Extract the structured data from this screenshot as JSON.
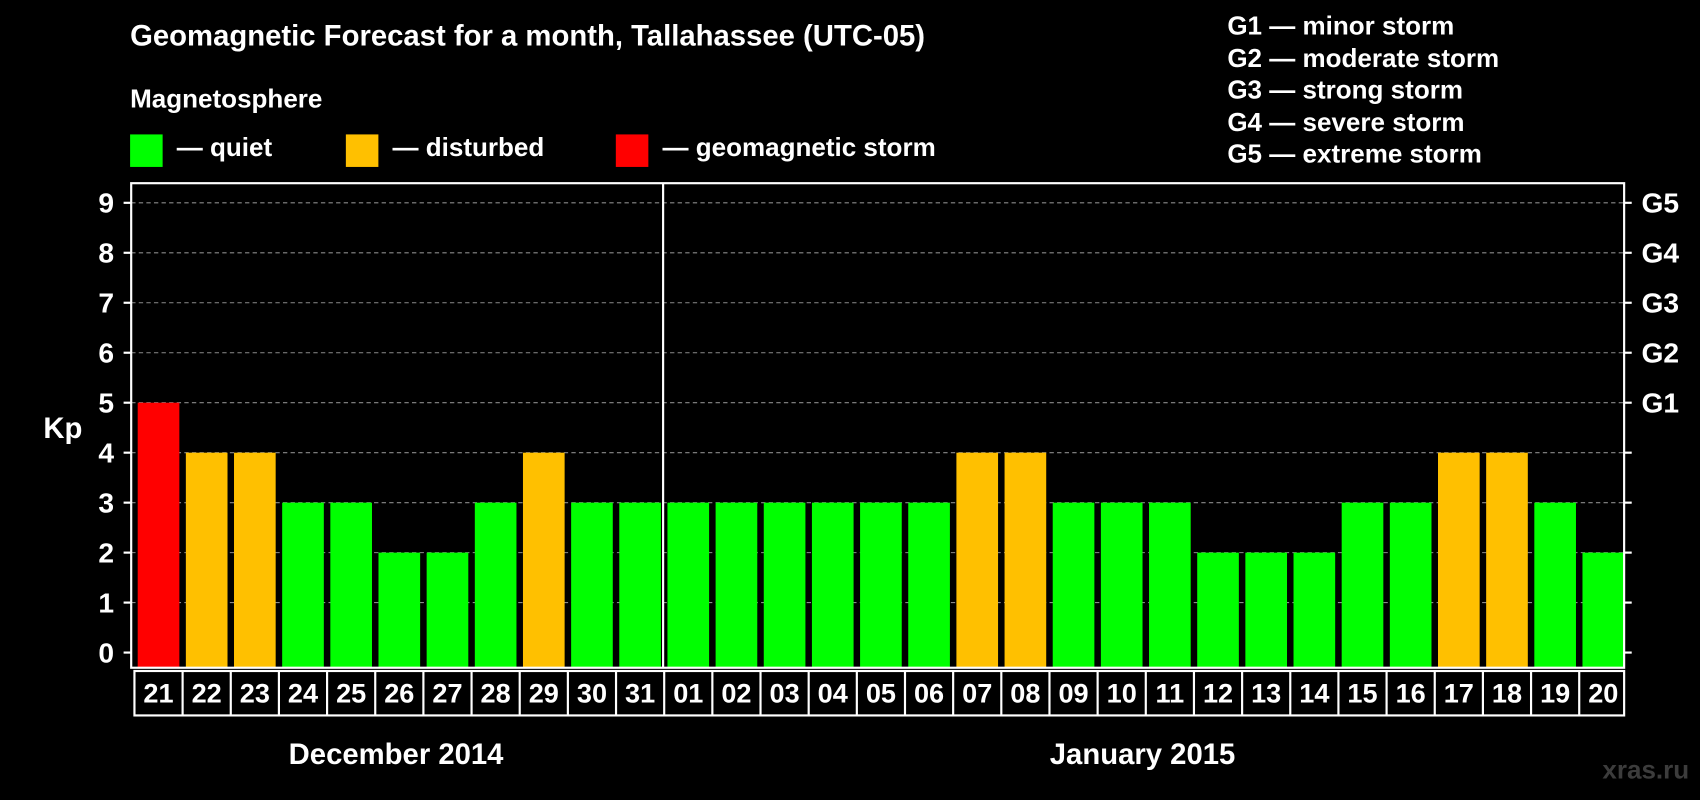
{
  "title": "Geomagnetic Forecast for a month, Tallahassee (UTC-05)",
  "legend": {
    "heading": "Magnetosphere",
    "items": [
      {
        "label": "— quiet",
        "color": "#00ff00"
      },
      {
        "label": "— disturbed",
        "color": "#ffc000"
      },
      {
        "label": "— geomagnetic storm",
        "color": "#ff0000"
      }
    ]
  },
  "storm_scale": [
    "G1 — minor storm",
    "G2 — moderate storm",
    "G3 — strong storm",
    "G4 — severe storm",
    "G5 — extreme storm"
  ],
  "watermark": "xras.ru",
  "chart_data": {
    "type": "bar",
    "title": "Geomagnetic Forecast for a month, Tallahassee (UTC-05)",
    "ylabel": "Kp",
    "ylim": [
      0,
      9
    ],
    "yticks": [
      0,
      1,
      2,
      3,
      4,
      5,
      6,
      7,
      8,
      9
    ],
    "grid": true,
    "right_axis": [
      {
        "kp": 5,
        "label": "G1"
      },
      {
        "kp": 6,
        "label": "G2"
      },
      {
        "kp": 7,
        "label": "G3"
      },
      {
        "kp": 8,
        "label": "G4"
      },
      {
        "kp": 9,
        "label": "G5"
      }
    ],
    "categories": [
      "21",
      "22",
      "23",
      "24",
      "25",
      "26",
      "27",
      "28",
      "29",
      "30",
      "31",
      "01",
      "02",
      "03",
      "04",
      "05",
      "06",
      "07",
      "08",
      "09",
      "10",
      "11",
      "12",
      "13",
      "14",
      "15",
      "16",
      "17",
      "18",
      "19",
      "20"
    ],
    "values": [
      5,
      4,
      4,
      3,
      3,
      2,
      2,
      3,
      4,
      3,
      3,
      3,
      3,
      3,
      3,
      3,
      3,
      4,
      4,
      3,
      3,
      3,
      2,
      2,
      2,
      3,
      3,
      4,
      4,
      3,
      2
    ],
    "colors": {
      "quiet": "#00ff00",
      "disturbed": "#ffc000",
      "storm": "#ff0000"
    },
    "months": [
      {
        "label": "December 2014",
        "days": 11
      },
      {
        "label": "January 2015",
        "days": 20
      }
    ]
  }
}
